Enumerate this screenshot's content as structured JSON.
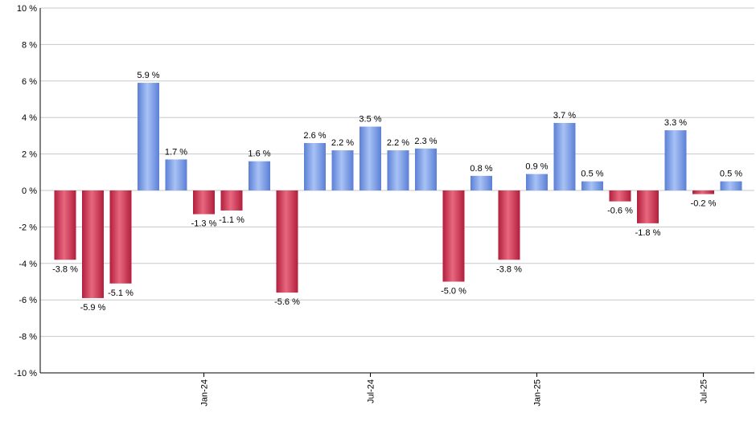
{
  "chart_data": {
    "type": "bar",
    "title": "",
    "xlabel": "",
    "ylabel": "",
    "ylim": [
      -10,
      10
    ],
    "y_ticks": [
      -10,
      -8,
      -6,
      -4,
      -2,
      0,
      2,
      4,
      6,
      8,
      10
    ],
    "y_tick_suffix": " %",
    "grid": true,
    "legend": "none",
    "values": [
      -3.8,
      -5.9,
      -5.1,
      5.9,
      1.7,
      -1.3,
      -1.1,
      1.6,
      -5.6,
      2.6,
      2.2,
      3.5,
      2.2,
      2.3,
      -5.0,
      0.8,
      -3.8,
      0.9,
      3.7,
      0.5,
      -0.6,
      -1.8,
      3.3,
      -0.2,
      0.5
    ],
    "data_labels": [
      "-3.8 %",
      "-5.9 %",
      "-5.1 %",
      "5.9 %",
      "1.7 %",
      "-1.3 %",
      "-1.1 %",
      "1.6 %",
      "-5.6 %",
      "2.6 %",
      "2.2 %",
      "3.5 %",
      "2.2 %",
      "2.3 %",
      "-5.0 %",
      "0.8 %",
      "-3.8 %",
      "0.9 %",
      "3.7 %",
      "0.5 %",
      "-0.6 %",
      "-1.8 %",
      "3.3 %",
      "-0.2 %",
      "0.5 %"
    ],
    "x_tick_labels": [
      {
        "label": "Jan-24",
        "index": 5
      },
      {
        "label": "Jul-24",
        "index": 11
      },
      {
        "label": "Jan-25",
        "index": 17
      },
      {
        "label": "Jul-25",
        "index": 23
      }
    ],
    "colors": {
      "positive": "#5b7fd6",
      "positive_light": "#a8c2f5",
      "negative": "#b21e3c",
      "negative_light": "#e8687f",
      "grid": "#c8c8c8",
      "axis": "#000000"
    }
  }
}
